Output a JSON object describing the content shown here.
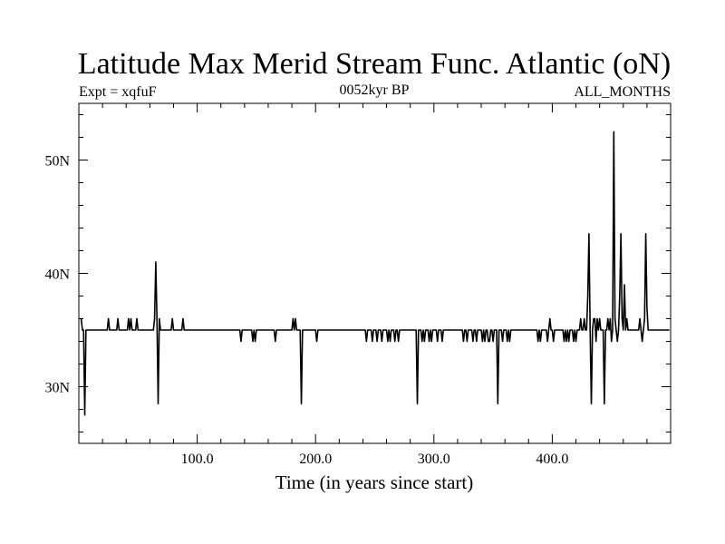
{
  "chart_data": {
    "type": "line",
    "title": "Latitude Max Merid Stream Func. Atlantic (oN)",
    "subtitle_left": "Expt = xqfuF",
    "subtitle_center": "0052kyr BP",
    "subtitle_right": "ALL_MONTHS",
    "xlabel": "Time (in years since start)",
    "ylabel": "",
    "xlim": [
      0,
      500
    ],
    "ylim": [
      25,
      55
    ],
    "x_ticks": [
      100,
      200,
      300,
      400
    ],
    "x_tick_labels": [
      "100.0",
      "200.0",
      "300.0",
      "400.0"
    ],
    "y_ticks": [
      30,
      40,
      50
    ],
    "y_tick_labels": [
      "30N",
      "40N",
      "50N"
    ],
    "grid": false,
    "line_color": "#000000",
    "baseline": 35,
    "series": [
      {
        "events": [
          [
            1,
            36
          ],
          [
            2,
            36
          ],
          [
            3,
            35
          ],
          [
            5,
            27.5
          ],
          [
            6,
            35
          ],
          [
            25,
            36
          ],
          [
            33,
            36
          ],
          [
            42,
            36
          ],
          [
            44,
            36
          ],
          [
            49,
            36
          ],
          [
            64,
            36
          ],
          [
            65,
            41
          ],
          [
            66,
            36
          ],
          [
            67,
            28.5
          ],
          [
            68,
            36
          ],
          [
            79,
            36
          ],
          [
            88,
            36
          ],
          [
            137,
            34
          ],
          [
            147,
            34
          ],
          [
            149,
            34
          ],
          [
            166,
            34
          ],
          [
            181,
            36
          ],
          [
            183,
            36
          ],
          [
            188,
            28.5
          ],
          [
            201,
            34
          ],
          [
            243,
            34
          ],
          [
            248,
            34
          ],
          [
            252,
            34
          ],
          [
            256,
            34
          ],
          [
            261,
            34
          ],
          [
            263,
            34
          ],
          [
            267,
            34
          ],
          [
            270,
            34
          ],
          [
            286,
            28.5
          ],
          [
            290,
            34
          ],
          [
            292,
            34
          ],
          [
            296,
            34
          ],
          [
            298,
            34
          ],
          [
            303,
            34
          ],
          [
            307,
            34
          ],
          [
            325,
            34
          ],
          [
            328,
            34
          ],
          [
            333,
            34
          ],
          [
            336,
            34
          ],
          [
            341,
            34
          ],
          [
            343,
            34
          ],
          [
            346,
            34
          ],
          [
            347,
            34
          ],
          [
            350,
            34
          ],
          [
            354,
            28.5
          ],
          [
            358,
            34
          ],
          [
            362,
            34
          ],
          [
            364,
            34
          ],
          [
            388,
            34
          ],
          [
            390,
            34
          ],
          [
            396,
            34
          ],
          [
            398,
            36
          ],
          [
            401,
            34
          ],
          [
            410,
            34
          ],
          [
            412,
            34
          ],
          [
            414,
            34
          ],
          [
            418,
            34
          ],
          [
            420,
            34
          ],
          [
            424,
            36
          ],
          [
            427,
            36
          ],
          [
            430,
            38
          ],
          [
            431,
            43.5
          ],
          [
            433,
            28.5
          ],
          [
            435,
            36
          ],
          [
            436,
            36
          ],
          [
            437,
            34
          ],
          [
            438,
            36
          ],
          [
            440,
            36
          ],
          [
            444,
            28.5
          ],
          [
            447,
            36
          ],
          [
            449,
            36
          ],
          [
            450,
            34
          ],
          [
            452,
            52.5
          ],
          [
            453,
            36
          ],
          [
            455,
            34
          ],
          [
            457,
            38
          ],
          [
            458,
            43.5
          ],
          [
            459,
            36
          ],
          [
            461,
            39
          ],
          [
            463,
            36
          ],
          [
            474,
            36
          ],
          [
            476,
            34
          ],
          [
            478,
            36
          ],
          [
            479,
            43.5
          ],
          [
            480,
            37
          ]
        ]
      }
    ]
  }
}
